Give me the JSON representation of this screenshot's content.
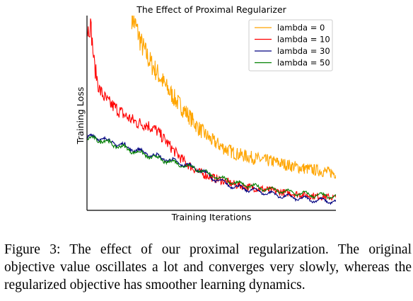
{
  "chart_data": {
    "type": "line",
    "title": "The Effect of Proximal Regularizer",
    "xlabel": "Training Iterations",
    "ylabel": "Training Loss",
    "x_ticks": "none",
    "y_ticks": "none",
    "xlim": [
      0,
      1
    ],
    "ylim": [
      0,
      1
    ],
    "grid": false,
    "legend_placement": "top-right",
    "series": [
      {
        "name": "lambda = 0",
        "color": "#ffa500",
        "x": [
          0.18,
          0.2,
          0.22,
          0.25,
          0.28,
          0.32,
          0.36,
          0.4,
          0.45,
          0.5,
          0.55,
          0.6,
          0.65,
          0.7,
          0.75,
          0.8,
          0.85,
          0.9,
          0.95,
          1.0
        ],
        "y": [
          1.0,
          0.93,
          0.85,
          0.77,
          0.71,
          0.63,
          0.56,
          0.5,
          0.42,
          0.36,
          0.32,
          0.29,
          0.275,
          0.26,
          0.25,
          0.235,
          0.22,
          0.21,
          0.2,
          0.19
        ],
        "noise": 0.05
      },
      {
        "name": "lambda = 10",
        "color": "#ff0000",
        "x": [
          0.0,
          0.015,
          0.03,
          0.05,
          0.08,
          0.12,
          0.16,
          0.2,
          0.24,
          0.28,
          0.32,
          0.36,
          0.4,
          0.45,
          0.5,
          0.55,
          0.6,
          0.7,
          0.8,
          0.9,
          1.0
        ],
        "y": [
          0.92,
          0.95,
          0.74,
          0.62,
          0.56,
          0.52,
          0.48,
          0.45,
          0.44,
          0.41,
          0.35,
          0.29,
          0.24,
          0.195,
          0.17,
          0.15,
          0.13,
          0.11,
          0.09,
          0.075,
          0.065
        ],
        "noise": 0.04
      },
      {
        "name": "lambda = 30",
        "color": "#000080",
        "x": [
          0.0,
          0.03,
          0.08,
          0.15,
          0.22,
          0.3,
          0.38,
          0.45,
          0.5,
          0.55,
          0.6,
          0.7,
          0.8,
          0.9,
          1.0
        ],
        "y": [
          0.37,
          0.38,
          0.36,
          0.33,
          0.3,
          0.27,
          0.24,
          0.21,
          0.17,
          0.14,
          0.12,
          0.095,
          0.07,
          0.055,
          0.045
        ],
        "noise": 0.012
      },
      {
        "name": "lambda = 50",
        "color": "#008000",
        "x": [
          0.0,
          0.03,
          0.08,
          0.15,
          0.22,
          0.3,
          0.38,
          0.45,
          0.5,
          0.55,
          0.6,
          0.7,
          0.8,
          0.9,
          1.0
        ],
        "y": [
          0.36,
          0.37,
          0.35,
          0.32,
          0.29,
          0.26,
          0.235,
          0.21,
          0.18,
          0.16,
          0.14,
          0.115,
          0.095,
          0.08,
          0.07
        ],
        "noise": 0.012
      }
    ]
  },
  "caption": {
    "text": "Figure 3: The effect of our proximal regularization. The original objective value oscillates a lot and converges very slowly, whereas the regularized objective has smoother learning dynamics."
  }
}
